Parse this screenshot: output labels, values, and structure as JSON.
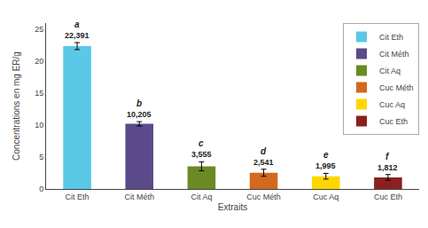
{
  "chart_data": {
    "type": "bar",
    "categories": [
      "Cit Eth",
      "Cit Méth",
      "Cit Aq",
      "Cuc Méth",
      "Cuc Aq",
      "Cuc Eth"
    ],
    "values": [
      22.391,
      10.205,
      3.555,
      2.541,
      1.995,
      1.812
    ],
    "errors": [
      0.55,
      0.35,
      0.7,
      0.55,
      0.45,
      0.45
    ],
    "data_labels": true,
    "value_labels": [
      "22,391",
      "10,205",
      "3,555",
      "2,541",
      "1,995",
      "1,812"
    ],
    "colors": [
      "#5BC8E8",
      "#5B4A8A",
      "#6B8A23",
      "#D2691E",
      "#FFD700",
      "#8B2020"
    ],
    "annotations": [
      {
        "category": "Cit Eth",
        "text": "a"
      },
      {
        "category": "Cit Méth",
        "text": "b"
      },
      {
        "category": "Cit Aq",
        "text": "c"
      },
      {
        "category": "Cuc Méth",
        "text": "d"
      },
      {
        "category": "Cuc Aq",
        "text": "e"
      },
      {
        "category": "Cuc Eth",
        "text": "f"
      }
    ],
    "ylabel": "Concentrations en mg ER/g",
    "xlabel": "Extraits",
    "ylim": [
      0,
      26
    ],
    "yticks": [
      0,
      5,
      10,
      15,
      20,
      25
    ],
    "grid": false,
    "legend": "upper right"
  }
}
